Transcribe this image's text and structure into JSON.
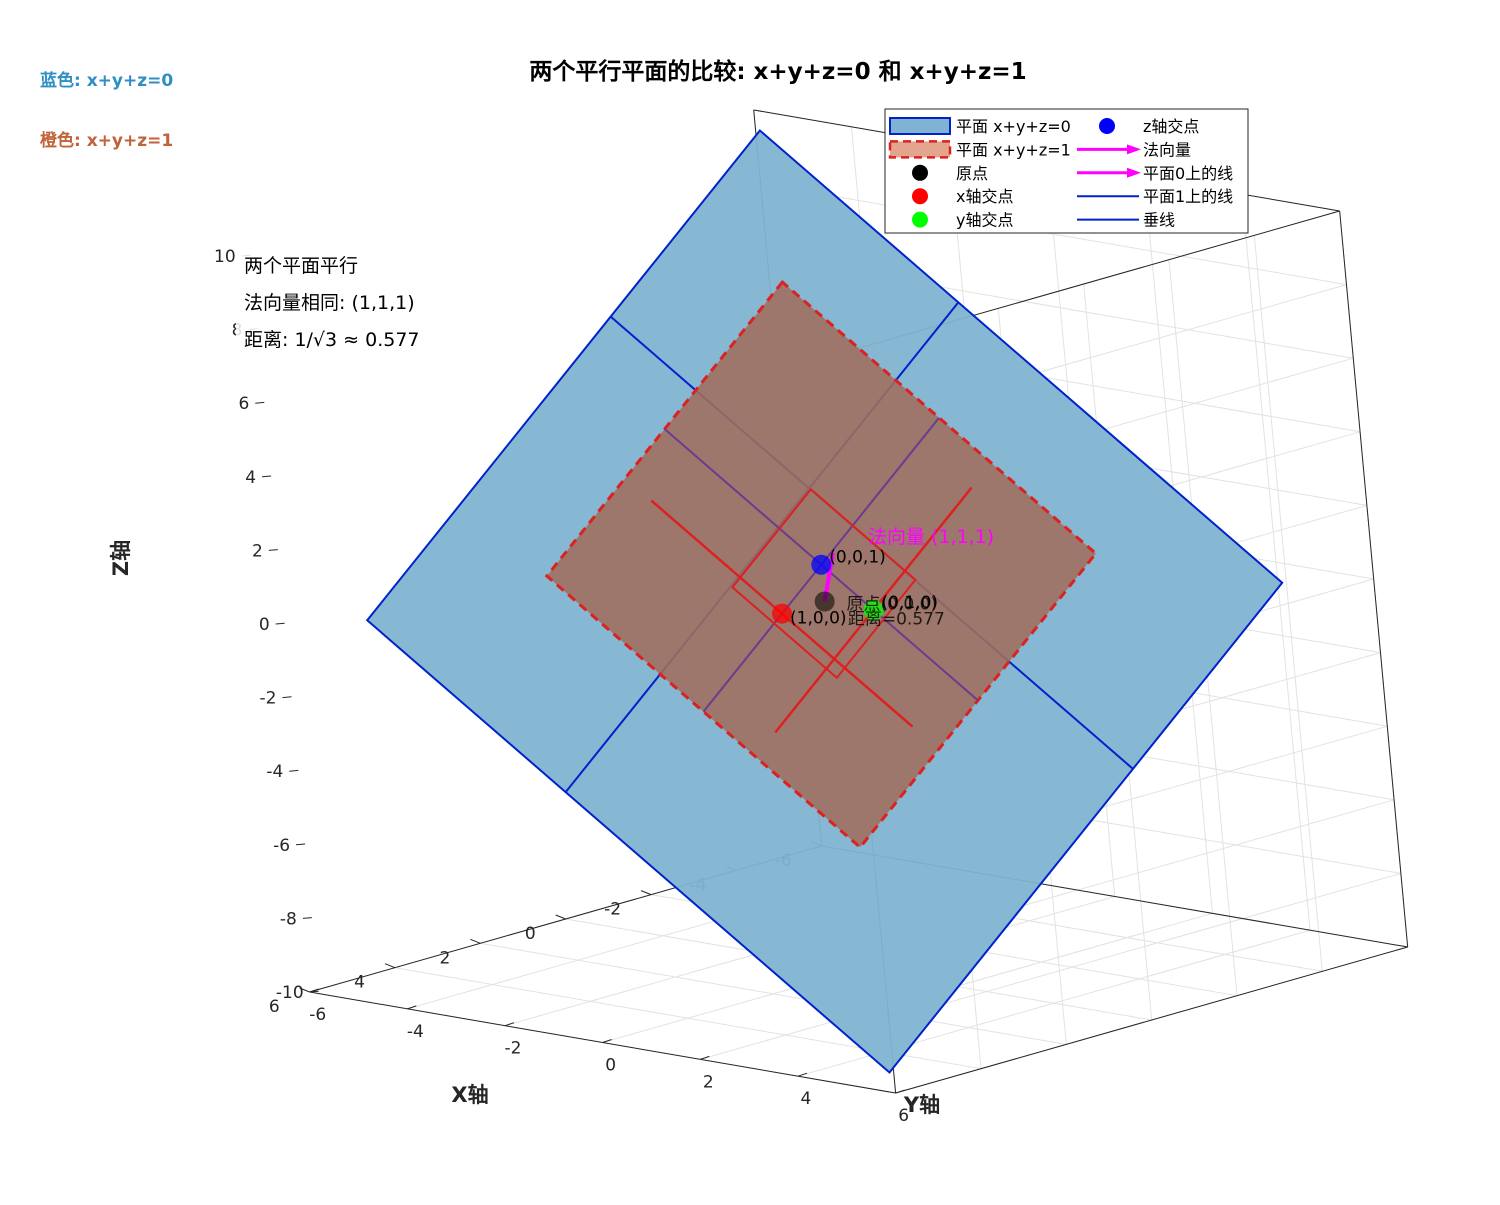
{
  "colors": {
    "plane0_fill": "#7fb3d1",
    "plane0_edge": "#0022cc",
    "plane1_fill": "#a06e5c",
    "plane1_edge": "#dd2020",
    "normal": "#ff00ff",
    "origin": "#000000",
    "x_point": "#ff0000",
    "y_point": "#00ff00",
    "z_point": "#0000ff",
    "side_blue": "#2f8fc5",
    "side_orange": "#c0623a"
  },
  "chart_data": {
    "type": "3d-surface",
    "title": "两个平行平面的比较: x+y+z=0 和 x+y+z=1",
    "xlabel": "X轴",
    "ylabel": "Y轴",
    "zlabel": "Z轴",
    "xlim": [
      -6,
      6
    ],
    "ylim": [
      -6,
      6
    ],
    "zlim": [
      -10,
      10
    ],
    "xticks": [
      -6,
      -4,
      -2,
      0,
      2,
      4,
      6
    ],
    "yticks": [
      -6,
      -4,
      -2,
      0,
      2,
      4,
      6
    ],
    "zticks": [
      -10,
      -8,
      -6,
      -4,
      -2,
      0,
      2,
      4,
      6,
      8,
      10
    ],
    "grid": true,
    "legend_position": "top-right",
    "side_labels": [
      "蓝色: x+y+z=0",
      "橙色: x+y+z=1"
    ],
    "notes": [
      "两个平面平行",
      "法向量相同: (1,1,1)",
      "距离: 1/√3 ≈ 0.577"
    ],
    "planes": [
      {
        "name": "平面 x+y+z=0",
        "d": 0,
        "range": [
          -5,
          5
        ]
      },
      {
        "name": "平面 x+y+z=1",
        "d": 1,
        "range": [
          -3,
          3
        ]
      }
    ],
    "points": [
      {
        "name": "原点",
        "xyz": [
          0,
          0,
          0
        ],
        "label": ""
      },
      {
        "name": "x轴交点",
        "xyz": [
          1,
          0,
          0
        ],
        "label": "(1,0,0)"
      },
      {
        "name": "y轴交点",
        "xyz": [
          0,
          1,
          0
        ],
        "label": "(0,1,0)"
      },
      {
        "name": "z轴交点",
        "xyz": [
          0,
          0,
          1
        ],
        "label": "(0,0,1)"
      }
    ],
    "normal_vector": {
      "from": [
        0,
        0,
        0
      ],
      "to": [
        3,
        3,
        3
      ],
      "label": "法向量 (1,1,1)"
    },
    "plane_annotations": [
      {
        "text": "原点(0,0,0)",
        "xyz": [
          0.3,
          0.3,
          0.0
        ]
      },
      {
        "text": "距离=0.577",
        "xyz": [
          0.3,
          0.3,
          -0.4
        ]
      }
    ],
    "legend": [
      {
        "label": "平面 x+y+z=0",
        "kind": "patch-solid"
      },
      {
        "label": "平面 x+y+z=1",
        "kind": "patch-dashed"
      },
      {
        "label": "原点",
        "kind": "dot-black"
      },
      {
        "label": "x轴交点",
        "kind": "dot-red"
      },
      {
        "label": "y轴交点",
        "kind": "dot-green"
      },
      {
        "label": "z轴交点",
        "kind": "dot-blue"
      },
      {
        "label": "法向量",
        "kind": "arrow-magenta"
      },
      {
        "label": "平面0上的线",
        "kind": "arrow-magenta"
      },
      {
        "label": "平面1上的线",
        "kind": "line-blue"
      },
      {
        "label": "垂线",
        "kind": "line-blue"
      }
    ]
  }
}
